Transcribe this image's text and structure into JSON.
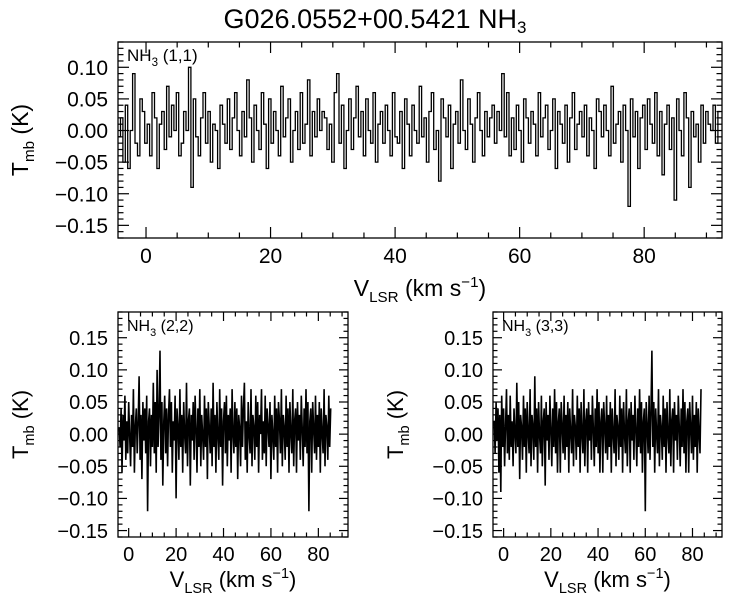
{
  "title": {
    "main": "G026.0552+00.5421 NH",
    "main_sub": "3"
  },
  "axis_labels": {
    "y": "T",
    "y_sub": "mb",
    "y_unit": " (K)",
    "x": "V",
    "x_sub": "LSR",
    "x_unit": " (km s",
    "x_sup": "−1",
    "x_close": ")"
  },
  "chart_data": [
    {
      "type": "line",
      "step": true,
      "panel_label": "NH",
      "panel_label_sub": "3",
      "panel_label_rest": " (1,1)",
      "xlim": [
        -4.5,
        92.5
      ],
      "ylim": [
        -0.17,
        0.14
      ],
      "xticks": [
        0,
        20,
        40,
        60,
        80
      ],
      "yticks": [
        -0.15,
        -0.1,
        -0.05,
        0.0,
        0.05,
        0.1
      ],
      "ytick_labels": [
        "−0.15",
        "−0.10",
        "−0.05",
        "0.00",
        "0.05",
        "0.10"
      ],
      "series": [
        {
          "x_start": -4.3,
          "x_step": 0.39,
          "values": [
            -0.01,
            0.02,
            -0.05,
            0.04,
            -0.06,
            0.0,
            0.09,
            -0.02,
            -0.04,
            0.05,
            0.03,
            -0.02,
            0.01,
            -0.04,
            0.06,
            0.02,
            -0.06,
            0.01,
            0.03,
            -0.03,
            0.07,
            -0.01,
            0.04,
            0.0,
            0.06,
            -0.04,
            -0.02,
            0.03,
            0.0,
            0.1,
            -0.09,
            0.05,
            -0.01,
            -0.04,
            0.02,
            0.06,
            -0.02,
            0.03,
            -0.05,
            0.01,
            0.0,
            -0.06,
            0.04,
            0.01,
            -0.02,
            0.05,
            -0.03,
            0.02,
            0.06,
            0.0,
            -0.04,
            0.03,
            -0.01,
            0.08,
            0.02,
            -0.05,
            0.04,
            0.0,
            -0.03,
            0.06,
            0.01,
            -0.06,
            0.05,
            -0.02,
            0.03,
            0.0,
            -0.04,
            0.07,
            -0.01,
            0.02,
            0.05,
            -0.05,
            0.0,
            0.03,
            -0.03,
            0.06,
            -0.02,
            0.01,
            0.08,
            -0.04,
            0.03,
            -0.01,
            0.05,
            0.0,
            0.03,
            0.02,
            -0.03,
            0.01,
            -0.05,
            0.06,
            0.09,
            -0.02,
            0.04,
            -0.06,
            0.0,
            0.05,
            -0.03,
            0.02,
            0.07,
            -0.01,
            0.03,
            -0.04,
            0.05,
            0.0,
            -0.02,
            0.06,
            -0.05,
            0.01,
            0.03,
            -0.02,
            0.04,
            0.0,
            -0.04,
            0.06,
            -0.01,
            -0.02,
            0.03,
            -0.06,
            0.05,
            0.01,
            -0.04,
            0.04,
            0.0,
            -0.02,
            0.07,
            -0.01,
            0.02,
            -0.05,
            0.03,
            0.06,
            -0.03,
            0.0,
            -0.08,
            0.05,
            0.02,
            -0.01,
            0.04,
            -0.06,
            0.01,
            0.03,
            -0.02,
            0.08,
            0.0,
            -0.03,
            0.05,
            0.01,
            -0.05,
            0.02,
            0.06,
            0.0,
            -0.04,
            0.03,
            -0.01,
            0.02,
            0.04,
            -0.02,
            0.03,
            0.0,
            0.09,
            -0.01,
            0.06,
            -0.04,
            0.02,
            -0.03,
            0.04,
            0.0,
            -0.05,
            0.05,
            0.02,
            -0.02,
            0.03,
            0.01,
            -0.04,
            0.06,
            -0.01,
            0.02,
            0.04,
            -0.03,
            0.0,
            0.05,
            -0.06,
            0.03,
            0.01,
            -0.02,
            0.04,
            -0.05,
            0.02,
            0.06,
            -0.03,
            0.01,
            0.03,
            -0.01,
            0.04,
            -0.04,
            0.02,
            0.0,
            -0.06,
            0.05,
            0.03,
            -0.01,
            0.04,
            0.0,
            -0.04,
            0.07,
            -0.02,
            0.01,
            0.03,
            -0.05,
            0.04,
            0.0,
            -0.12,
            0.05,
            -0.01,
            0.03,
            -0.06,
            0.02,
            0.04,
            -0.03,
            0.05,
            0.01,
            -0.02,
            0.06,
            -0.04,
            0.03,
            -0.07,
            0.01,
            0.04,
            -0.03,
            0.02,
            -0.11,
            0.05,
            0.0,
            -0.04,
            0.06,
            0.02,
            -0.09,
            0.03,
            -0.01,
            0.01,
            -0.05,
            0.04,
            -0.02,
            0.03,
            0.01,
            0.0,
            0.04,
            -0.02,
            0.03
          ]
        }
      ]
    },
    {
      "type": "line",
      "step": false,
      "panel_label": "NH",
      "panel_label_sub": "3",
      "panel_label_rest": " (2,2)",
      "xlim": [
        -4.5,
        92.5
      ],
      "ylim": [
        -0.16,
        0.19
      ],
      "xticks": [
        0,
        20,
        40,
        60,
        80
      ],
      "yticks": [
        -0.15,
        -0.1,
        -0.05,
        0.0,
        0.05,
        0.1,
        0.15
      ],
      "ytick_labels": [
        "−0.15",
        "−0.10",
        "−0.05",
        "0.00",
        "0.05",
        "0.10",
        "0.15"
      ],
      "series": [
        {
          "x_start": -4.0,
          "x_step": 0.4,
          "values": [
            0.01,
            -0.02,
            0.04,
            -0.06,
            0.03,
            -0.01,
            0.06,
            -0.04,
            0.02,
            -0.03,
            0.05,
            0.0,
            -0.05,
            0.03,
            -0.02,
            0.07,
            -0.06,
            0.01,
            0.04,
            -0.03,
            0.02,
            0.09,
            -0.04,
            0.03,
            -0.07,
            0.05,
            -0.01,
            0.04,
            -0.03,
            0.06,
            -0.12,
            0.02,
            0.04,
            -0.05,
            0.03,
            -0.02,
            0.08,
            -0.03,
            0.05,
            -0.06,
            0.1,
            -0.02,
            0.03,
            0.13,
            -0.04,
            0.05,
            -0.08,
            0.02,
            0.06,
            -0.03,
            0.04,
            -0.05,
            0.03,
            0.07,
            -0.02,
            0.05,
            -0.06,
            0.02,
            -0.01,
            0.06,
            -0.1,
            0.04,
            0.01,
            -0.04,
            0.07,
            -0.02,
            0.03,
            -0.06,
            0.05,
            0.0,
            -0.03,
            0.08,
            -0.05,
            0.02,
            0.04,
            -0.08,
            0.03,
            -0.01,
            0.05,
            -0.04,
            0.06,
            0.01,
            -0.06,
            0.04,
            -0.02,
            0.07,
            -0.05,
            0.03,
            0.0,
            -0.04,
            0.06,
            -0.02,
            0.04,
            -0.07,
            0.05,
            0.01,
            -0.03,
            0.04,
            -0.05,
            0.08,
            -0.02,
            0.03,
            -0.06,
            0.05,
            0.0,
            -0.04,
            0.07,
            -0.02,
            0.04,
            -0.08,
            0.02,
            0.05,
            -0.03,
            0.06,
            -0.05,
            0.03,
            -0.01,
            0.04,
            -0.06,
            0.07,
            0.0,
            -0.03,
            0.05,
            -0.02,
            0.04,
            -0.07,
            0.03,
            0.01,
            -0.05,
            0.06,
            -0.02,
            0.04,
            0.08,
            -0.04,
            0.02,
            -0.06,
            0.05,
            0.0,
            -0.03,
            0.07,
            -0.05,
            0.03,
            0.01,
            -0.04,
            0.06,
            -0.02,
            0.05,
            -0.06,
            0.03,
            0.0,
            0.07,
            -0.04,
            0.02,
            -0.03,
            0.06,
            -0.05,
            0.04,
            0.01,
            -0.02,
            0.05,
            -0.07,
            0.03,
            0.0,
            -0.04,
            0.06,
            -0.02,
            0.04,
            -0.06,
            0.05,
            0.02,
            -0.03,
            0.07,
            -0.05,
            0.03,
            0.01,
            -0.04,
            0.06,
            -0.02,
            0.04,
            -0.06,
            0.05,
            0.0,
            -0.03,
            0.07,
            -0.05,
            0.02,
            0.04,
            -0.06,
            0.05,
            -0.01,
            0.03,
            -0.04,
            0.06,
            0.01,
            -0.05,
            0.04,
            -0.02,
            0.07,
            -0.03,
            0.05,
            -0.12,
            0.02,
            0.04,
            -0.06,
            0.05,
            0.01,
            -0.03,
            0.06,
            -0.04,
            0.03,
            -0.02,
            0.05,
            -0.06,
            0.04,
            0.0,
            -0.03,
            0.07,
            -0.05,
            0.03,
            0.01,
            -0.04,
            0.06,
            -0.02,
            0.04
          ]
        }
      ]
    },
    {
      "type": "line",
      "step": false,
      "panel_label": "NH",
      "panel_label_sub": "3",
      "panel_label_rest": " (3,3)",
      "xlim": [
        -4.5,
        92.5
      ],
      "ylim": [
        -0.16,
        0.19
      ],
      "xticks": [
        0,
        20,
        40,
        60,
        80
      ],
      "yticks": [
        -0.15,
        -0.1,
        -0.05,
        0.0,
        0.05,
        0.1,
        0.15
      ],
      "ytick_labels": [
        "−0.15",
        "−0.10",
        "−0.05",
        "0.00",
        "0.05",
        "0.10",
        "0.15"
      ],
      "series": [
        {
          "x_start": -4.0,
          "x_step": 0.4,
          "values": [
            0.02,
            -0.03,
            0.05,
            -0.01,
            0.04,
            -0.06,
            0.03,
            -0.09,
            0.06,
            -0.02,
            0.04,
            -0.05,
            0.01,
            0.07,
            -0.03,
            0.03,
            -0.04,
            0.06,
            -0.02,
            0.02,
            -0.05,
            0.04,
            0.0,
            -0.03,
            0.08,
            -0.02,
            0.05,
            -0.07,
            0.03,
            0.01,
            -0.04,
            0.06,
            -0.02,
            0.04,
            -0.06,
            0.05,
            0.0,
            -0.03,
            0.07,
            -0.05,
            0.03,
            0.01,
            -0.04,
            0.09,
            -0.02,
            0.04,
            -0.06,
            0.05,
            0.0,
            -0.03,
            0.06,
            -0.05,
            0.02,
            0.04,
            -0.08,
            0.05,
            -0.01,
            0.03,
            -0.04,
            0.06,
            0.01,
            -0.05,
            0.04,
            -0.02,
            0.07,
            -0.03,
            0.05,
            -0.06,
            0.02,
            0.04,
            -0.06,
            0.05,
            0.01,
            -0.03,
            0.06,
            -0.04,
            0.03,
            -0.02,
            0.05,
            -0.06,
            0.04,
            0.0,
            -0.03,
            0.07,
            -0.05,
            0.03,
            0.01,
            -0.04,
            0.06,
            -0.02,
            0.04,
            -0.06,
            0.05,
            0.0,
            -0.03,
            0.07,
            -0.05,
            0.02,
            0.04,
            -0.06,
            0.05,
            -0.01,
            0.03,
            -0.04,
            0.06,
            0.01,
            -0.05,
            0.04,
            -0.02,
            0.07,
            -0.03,
            0.05,
            -0.06,
            0.02,
            0.04,
            -0.06,
            0.05,
            0.01,
            -0.03,
            0.06,
            -0.04,
            0.03,
            -0.02,
            0.05,
            -0.06,
            0.04,
            0.0,
            -0.03,
            0.07,
            -0.05,
            0.03,
            0.01,
            -0.04,
            0.06,
            -0.02,
            0.04,
            -0.06,
            0.05,
            0.0,
            -0.03,
            0.07,
            -0.05,
            0.02,
            0.04,
            -0.06,
            0.05,
            -0.01,
            0.03,
            -0.04,
            0.06,
            0.01,
            -0.05,
            0.04,
            -0.02,
            0.07,
            -0.03,
            0.05,
            -0.06,
            0.02,
            0.04,
            -0.12,
            0.05,
            0.01,
            -0.03,
            0.06,
            -0.04,
            0.03,
            0.13,
            -0.02,
            0.05,
            -0.06,
            0.04,
            0.0,
            -0.03,
            0.07,
            -0.05,
            0.03,
            0.01,
            -0.04,
            0.06,
            -0.02,
            0.04,
            -0.06,
            0.05,
            0.0,
            -0.03,
            0.07,
            -0.05,
            0.02,
            0.04,
            -0.06,
            0.05,
            -0.01,
            0.03,
            -0.04,
            0.06,
            0.01,
            -0.05,
            0.04,
            -0.02,
            0.07,
            -0.03,
            0.05,
            -0.06,
            0.02,
            0.04,
            -0.06,
            0.05,
            0.01,
            -0.03,
            0.06,
            -0.04,
            0.03,
            -0.02,
            0.05,
            -0.06,
            0.04,
            0.0,
            -0.03,
            0.07
          ]
        }
      ]
    }
  ]
}
